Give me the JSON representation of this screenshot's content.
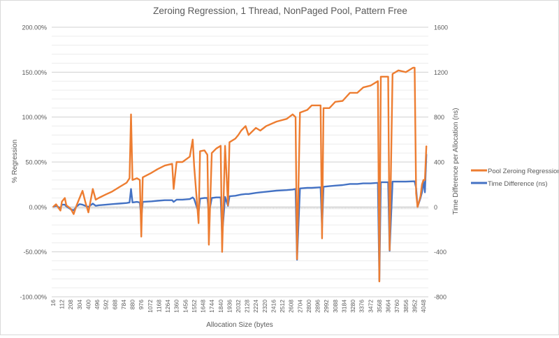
{
  "chart_data": {
    "type": "line",
    "title": "Zeroing Regression, 1 Thread, NonPaged Pool, Pattern Free",
    "xlabel": "Allocation Size (bytes",
    "ylabel": "% Regression",
    "y2label": "Time Difference per Allocation (ns)",
    "ylim": [
      -100,
      200
    ],
    "y2lim": [
      -800,
      1600
    ],
    "yticks": [
      "200.00%",
      "150.00%",
      "100.00%",
      "50.00%",
      "0.00%",
      "-50.00%",
      "-100.00%"
    ],
    "ytick_values": [
      200,
      150,
      100,
      50,
      0,
      -50,
      -100
    ],
    "y2ticks": [
      "1600",
      "1200",
      "800",
      "400",
      "0",
      "-400",
      "-800"
    ],
    "y2tick_values": [
      1600,
      1200,
      800,
      400,
      0,
      -400,
      -800
    ],
    "xtick_labels": [
      "16",
      "112",
      "208",
      "304",
      "400",
      "496",
      "592",
      "688",
      "784",
      "880",
      "976",
      "1072",
      "1168",
      "1264",
      "1360",
      "1456",
      "1552",
      "1648",
      "1744",
      "1840",
      "1936",
      "2032",
      "2128",
      "2224",
      "2320",
      "2416",
      "2512",
      "2608",
      "2704",
      "2800",
      "2896",
      "2992",
      "3088",
      "3184",
      "3280",
      "3376",
      "3472",
      "3568",
      "3664",
      "3760",
      "3856",
      "3952",
      "4048"
    ],
    "grid": true,
    "legend_position": "right",
    "x": [
      16,
      48,
      96,
      112,
      144,
      160,
      208,
      240,
      272,
      304,
      336,
      368,
      400,
      448,
      480,
      512,
      592,
      656,
      736,
      816,
      848,
      864,
      880,
      928,
      960,
      976,
      992,
      1088,
      1152,
      1232,
      1312,
      1328,
      1360,
      1424,
      1504,
      1536,
      1552,
      1600,
      1616,
      1664,
      1696,
      1712,
      1744,
      1792,
      1840,
      1856,
      1888,
      1920,
      1936,
      2000,
      2032,
      2064,
      2112,
      2144,
      2224,
      2272,
      2336,
      2448,
      2560,
      2624,
      2656,
      2672,
      2704,
      2784,
      2832,
      2928,
      2944,
      2960,
      3024,
      3088,
      3168,
      3248,
      3328,
      3392,
      3472,
      3552,
      3568,
      3584,
      3664,
      3680,
      3712,
      3776,
      3856,
      3936,
      3952,
      3968,
      3984,
      4016,
      4032,
      4048,
      4064,
      4080
    ],
    "series": [
      {
        "name": "Pool Zeroing Regression",
        "axis": "left",
        "color": "#ed7d31",
        "values": [
          0,
          3,
          -4,
          6,
          10,
          2,
          -2,
          -8,
          2,
          10,
          18,
          5,
          -6,
          20,
          8,
          10,
          14,
          17,
          22,
          27,
          32,
          103,
          30,
          32,
          30,
          -33,
          33,
          38,
          42,
          46,
          48,
          20,
          50,
          50,
          56,
          75,
          45,
          -18,
          62,
          63,
          58,
          -42,
          60,
          65,
          68,
          -50,
          68,
          2,
          72,
          76,
          80,
          85,
          90,
          80,
          88,
          85,
          90,
          95,
          98,
          103,
          100,
          -58,
          105,
          108,
          113,
          113,
          -35,
          110,
          110,
          117,
          118,
          127,
          127,
          133,
          135,
          140,
          -83,
          145,
          145,
          -48,
          148,
          152,
          150,
          155,
          155,
          15,
          0,
          12,
          25,
          30,
          30,
          68
        ]
      },
      {
        "name": "Time Difference (ns)",
        "axis": "right",
        "color": "#4472c4",
        "values": [
          0,
          10,
          -10,
          20,
          20,
          5,
          -20,
          -30,
          5,
          25,
          20,
          10,
          0,
          30,
          10,
          15,
          20,
          25,
          30,
          35,
          40,
          160,
          40,
          45,
          40,
          -100,
          45,
          50,
          55,
          60,
          60,
          45,
          65,
          65,
          70,
          85,
          70,
          -50,
          75,
          80,
          80,
          -60,
          80,
          85,
          85,
          -255,
          90,
          10,
          95,
          100,
          105,
          110,
          115,
          115,
          125,
          130,
          135,
          145,
          150,
          155,
          160,
          -470,
          165,
          170,
          170,
          175,
          -185,
          180,
          185,
          190,
          195,
          205,
          205,
          210,
          210,
          215,
          -660,
          220,
          220,
          -390,
          225,
          225,
          225,
          228,
          228,
          170,
          0,
          80,
          130,
          230,
          130,
          470
        ]
      }
    ]
  }
}
